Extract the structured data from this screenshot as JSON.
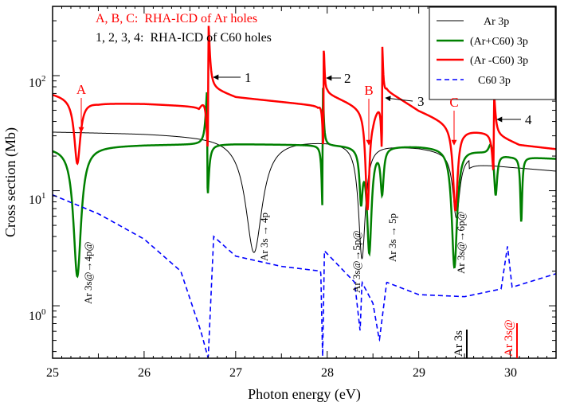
{
  "chart_data": {
    "type": "line",
    "xlabel": "Photon energy (eV)",
    "ylabel": "Cross section (Mb)",
    "xlim": [
      25,
      30.5
    ],
    "ylim": [
      0.35,
      400
    ],
    "yscale": "log",
    "x_ticks": [
      25,
      26,
      27,
      28,
      29,
      30
    ],
    "x_tick_labels": [
      "25",
      "26",
      "27",
      "28",
      "29",
      "30"
    ],
    "y_ticks": [
      {
        "value": 1,
        "base": "10",
        "exp": "0"
      },
      {
        "value": 10,
        "base": "10",
        "exp": "1"
      },
      {
        "value": 100,
        "base": "10",
        "exp": "2"
      }
    ],
    "colors": {
      "ar": "#000000",
      "arc60": "#008000",
      "armc60": "#ff0000",
      "c60": "#0000ff"
    },
    "legend": {
      "position": "top-right",
      "entries": [
        {
          "label": "Ar 3p",
          "series": "ar"
        },
        {
          "label": "(Ar+C60) 3p",
          "series": "arc60"
        },
        {
          "label": "(Ar -C60) 3p",
          "series": "armc60"
        },
        {
          "label": "C60 3p",
          "series": "c60"
        }
      ]
    },
    "header": {
      "line1_keys": "A, B, C:",
      "line1_text": "RHA-ICD of Ar holes",
      "line2_keys": "1, 2, 3, 4:",
      "line2_text": "RHA-ICD of C60 holes"
    },
    "series": [
      {
        "key": "ar",
        "name": "Ar 3p",
        "baseline": [
          [
            25,
            32.5
          ],
          [
            26,
            31.5
          ],
          [
            27,
            29.5
          ],
          [
            28,
            27.5
          ],
          [
            29,
            24
          ],
          [
            29.5,
            21
          ],
          [
            30,
            19
          ],
          [
            30.5,
            17.5
          ]
        ],
        "features": [
          {
            "type": "dip",
            "x0": 27.2,
            "depth": 2.3,
            "w": 0.11
          },
          {
            "type": "dip",
            "x0": 28.38,
            "depth": 2.3,
            "w": 0.045
          },
          {
            "type": "dip",
            "x0": 29.41,
            "depth": 1.3,
            "w": 0.045
          }
        ],
        "steps": [
          {
            "x0": 29.55,
            "f": 0.85
          }
        ]
      },
      {
        "key": "arc60",
        "name": "(Ar+C60) 3p",
        "baseline": [
          [
            25,
            24
          ],
          [
            26,
            25
          ],
          [
            27,
            25.5
          ],
          [
            28,
            25
          ],
          [
            29,
            24.5
          ],
          [
            29.5,
            23.5
          ],
          [
            30,
            20
          ],
          [
            30.5,
            19
          ]
        ],
        "features": [
          {
            "type": "dip",
            "x0": 25.27,
            "depth": 2.6,
            "w": 0.05
          },
          {
            "type": "fano",
            "x0": 26.69,
            "depth": 1.1,
            "w": 0.02,
            "q": -1
          },
          {
            "type": "fano",
            "x0": 27.95,
            "depth": 1.3,
            "w": 0.012,
            "q": 1
          },
          {
            "type": "dip",
            "x0": 28.37,
            "depth": 1.0,
            "w": 0.02
          },
          {
            "type": "dip",
            "x0": 28.46,
            "depth": 2.1,
            "w": 0.03
          },
          {
            "type": "dip",
            "x0": 28.6,
            "depth": 0.9,
            "w": 0.02
          },
          {
            "type": "dip",
            "x0": 29.39,
            "depth": 2.4,
            "w": 0.035
          },
          {
            "type": "bump",
            "x0": 29.79,
            "height": 0.3,
            "w": 0.03
          },
          {
            "type": "dip",
            "x0": 29.84,
            "depth": 0.9,
            "w": 0.02
          },
          {
            "type": "dip",
            "x0": 30.12,
            "depth": 1.3,
            "w": 0.012
          }
        ]
      },
      {
        "key": "armc60",
        "name": "(Ar -C60) 3p",
        "baseline": [
          [
            25,
            70
          ],
          [
            25.5,
            58
          ],
          [
            26,
            57
          ],
          [
            26.6,
            54
          ],
          [
            26.7,
            80
          ],
          [
            27,
            65
          ],
          [
            27.9,
            55
          ],
          [
            28,
            70
          ],
          [
            28.5,
            48
          ],
          [
            28.65,
            75
          ],
          [
            29,
            50
          ],
          [
            29.35,
            38
          ],
          [
            29.5,
            34
          ],
          [
            29.8,
            32
          ],
          [
            30.1,
            25
          ],
          [
            30.5,
            23
          ]
        ],
        "features": [
          {
            "type": "dip",
            "x0": 25.27,
            "depth": 1.3,
            "w": 0.04
          },
          {
            "type": "fano",
            "x0": 26.7,
            "depth": 1.3,
            "w": 0.02,
            "q": 1
          },
          {
            "type": "fano",
            "x0": 27.96,
            "depth": 1.1,
            "w": 0.012,
            "q": 1
          },
          {
            "type": "dip",
            "x0": 28.44,
            "depth": 2.0,
            "w": 0.025
          },
          {
            "type": "fano",
            "x0": 28.6,
            "depth": 1.1,
            "w": 0.012,
            "q": 1
          },
          {
            "type": "dip",
            "x0": 29.4,
            "depth": 1.7,
            "w": 0.03
          },
          {
            "type": "fano",
            "x0": 29.82,
            "depth": 0.8,
            "w": 0.02,
            "q": 1
          }
        ]
      },
      {
        "key": "c60",
        "name": "C60 3p",
        "baseline": [
          [
            25,
            9.2
          ],
          [
            25.5,
            6.3
          ],
          [
            26,
            3.8
          ],
          [
            26.4,
            2.0
          ],
          [
            26.62,
            0.6
          ],
          [
            26.7,
            0.35
          ],
          [
            26.76,
            4.0
          ],
          [
            27,
            2.7
          ],
          [
            27.5,
            2.2
          ],
          [
            27.93,
            2.0
          ],
          [
            27.95,
            0.35
          ],
          [
            27.97,
            3.0
          ],
          [
            28.3,
            1.6
          ],
          [
            28.36,
            0.6
          ],
          [
            28.38,
            1.6
          ],
          [
            28.5,
            1.05
          ],
          [
            28.57,
            0.5
          ],
          [
            28.65,
            1.6
          ],
          [
            29,
            1.25
          ],
          [
            29.5,
            1.2
          ],
          [
            29.9,
            1.4
          ],
          [
            29.97,
            3.3
          ],
          [
            30.02,
            1.45
          ],
          [
            30.5,
            1.9
          ]
        ],
        "features": []
      }
    ],
    "arrow_labels": [
      {
        "text": "A",
        "color": "red"
      },
      {
        "text": "B",
        "color": "red"
      },
      {
        "text": "C",
        "color": "red"
      },
      {
        "text": "1",
        "color": "black"
      },
      {
        "text": "2",
        "color": "black"
      },
      {
        "text": "3",
        "color": "black"
      },
      {
        "text": "4",
        "color": "black"
      }
    ],
    "transition_labels": [
      {
        "text": "Ar 3s@→4p@"
      },
      {
        "text": "Ar 3s → 4p"
      },
      {
        "text": "Ar 3s@→5p@"
      },
      {
        "text": "Ar 3s → 5p"
      },
      {
        "text": "Ar 3s@→6p@"
      }
    ],
    "threshold_labels": [
      {
        "text": "Ar 3s",
        "color": "black"
      },
      {
        "text": "Ar 3s@",
        "color": "red"
      }
    ]
  }
}
